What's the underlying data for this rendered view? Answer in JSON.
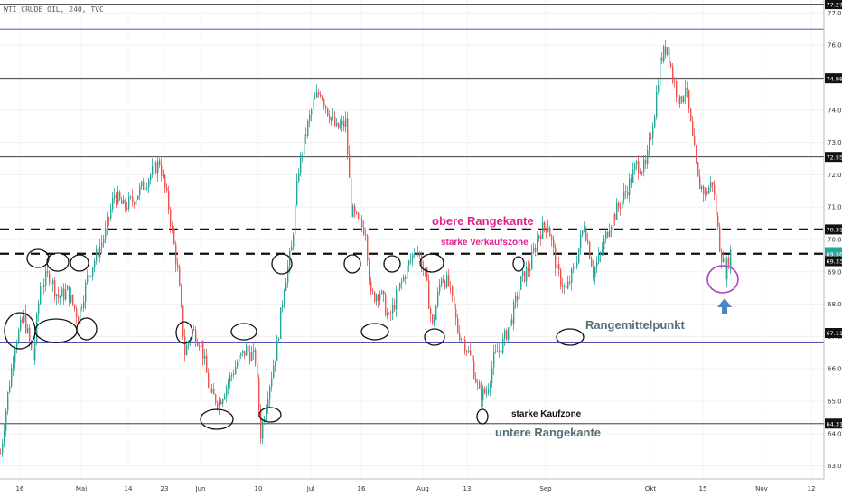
{
  "header": {
    "symbol_line": "WTI CRUDE OIL, 240, TVC"
  },
  "chart_data": {
    "type": "candlestick",
    "title": "WTI CRUDE OIL, 240, TVC",
    "ylim": [
      62.6,
      77.4
    ],
    "y_ticks": [
      63.0,
      64.0,
      65.0,
      66.0,
      67.0,
      68.0,
      69.0,
      70.0,
      71.0,
      72.0,
      73.0,
      74.0,
      75.0,
      76.0,
      77.0
    ],
    "x_ticks": [
      "16",
      "Mai",
      "14",
      "23",
      "Jun",
      "10",
      "Jul",
      "16",
      "Aug",
      "13",
      "Sep",
      "Okt",
      "15",
      "Nov",
      "12"
    ],
    "horizontal_levels": [
      {
        "value": 77.27,
        "label": "77.27",
        "color": "#222222",
        "style": "solid",
        "label_bg": "#111111"
      },
      {
        "value": 76.5,
        "label": "",
        "color": "#3a3aa8",
        "style": "solid"
      },
      {
        "value": 74.98,
        "label": "74.98",
        "color": "#222222",
        "style": "solid",
        "label_bg": "#111111"
      },
      {
        "value": 72.55,
        "label": "72.55",
        "color": "#222222",
        "style": "solid",
        "label_bg": "#111111"
      },
      {
        "value": 70.31,
        "label": "70.31",
        "color": "#111111",
        "style": "dashed",
        "label_bg": "#111111"
      },
      {
        "value": 69.61,
        "label": "69.61",
        "color": "#26a69a",
        "style": "none",
        "label_bg": "#26a69a"
      },
      {
        "value": 69.56,
        "label": "69.56",
        "color": "#111111",
        "style": "dashed",
        "label_bg": "#26a69a"
      },
      {
        "value": 69.33,
        "label": "69.33",
        "color": "#111111",
        "style": "none",
        "label_bg": "#111111"
      },
      {
        "value": 67.11,
        "label": "67.11",
        "color": "#222222",
        "style": "solid",
        "label_bg": "#111111"
      },
      {
        "value": 66.8,
        "label": "",
        "color": "#3a3aa8",
        "style": "solid"
      },
      {
        "value": 64.31,
        "label": "64.31",
        "color": "#222222",
        "style": "solid",
        "label_bg": "#111111"
      }
    ],
    "close_path": [
      [
        0,
        63.4
      ],
      [
        8,
        65.2
      ],
      [
        16,
        66.8
      ],
      [
        26,
        67.6
      ],
      [
        36,
        66.3
      ],
      [
        44,
        68.6
      ],
      [
        54,
        68.9
      ],
      [
        64,
        68.2
      ],
      [
        74,
        68.4
      ],
      [
        86,
        67.6
      ],
      [
        96,
        68.8
      ],
      [
        106,
        69.5
      ],
      [
        116,
        70.2
      ],
      [
        126,
        71.4
      ],
      [
        136,
        71.0
      ],
      [
        146,
        71.2
      ],
      [
        156,
        71.6
      ],
      [
        166,
        72.0
      ],
      [
        176,
        72.4
      ],
      [
        186,
        71.0
      ],
      [
        196,
        69.0
      ],
      [
        204,
        66.5
      ],
      [
        212,
        67.2
      ],
      [
        222,
        66.8
      ],
      [
        232,
        65.2
      ],
      [
        242,
        65.0
      ],
      [
        252,
        65.6
      ],
      [
        262,
        66.2
      ],
      [
        272,
        66.6
      ],
      [
        282,
        66.3
      ],
      [
        288,
        64.0
      ],
      [
        296,
        65.3
      ],
      [
        306,
        66.7
      ],
      [
        314,
        68.6
      ],
      [
        322,
        69.7
      ],
      [
        330,
        72.2
      ],
      [
        338,
        73.3
      ],
      [
        346,
        74.2
      ],
      [
        354,
        74.6
      ],
      [
        362,
        74.0
      ],
      [
        372,
        73.4
      ],
      [
        382,
        73.6
      ],
      [
        388,
        70.9
      ],
      [
        396,
        70.5
      ],
      [
        404,
        70.3
      ],
      [
        410,
        68.2
      ],
      [
        420,
        68.4
      ],
      [
        430,
        67.5
      ],
      [
        440,
        68.4
      ],
      [
        450,
        69.1
      ],
      [
        460,
        69.8
      ],
      [
        470,
        68.9
      ],
      [
        478,
        67.3
      ],
      [
        488,
        68.9
      ],
      [
        496,
        68.6
      ],
      [
        506,
        67.2
      ],
      [
        514,
        66.8
      ],
      [
        522,
        66.2
      ],
      [
        530,
        65.2
      ],
      [
        538,
        65.3
      ],
      [
        546,
        66.3
      ],
      [
        556,
        66.8
      ],
      [
        566,
        67.6
      ],
      [
        576,
        68.7
      ],
      [
        586,
        69.2
      ],
      [
        596,
        70.2
      ],
      [
        606,
        70.5
      ],
      [
        616,
        69.0
      ],
      [
        626,
        68.4
      ],
      [
        636,
        69.2
      ],
      [
        646,
        70.5
      ],
      [
        656,
        69.0
      ],
      [
        664,
        69.5
      ],
      [
        674,
        70.5
      ],
      [
        684,
        71.0
      ],
      [
        694,
        71.6
      ],
      [
        704,
        72.3
      ],
      [
        714,
        72.2
      ],
      [
        724,
        74.0
      ],
      [
        730,
        75.5
      ],
      [
        738,
        76.0
      ],
      [
        744,
        75.0
      ],
      [
        752,
        74.2
      ],
      [
        758,
        74.8
      ],
      [
        764,
        73.5
      ],
      [
        772,
        71.8
      ],
      [
        780,
        71.4
      ],
      [
        788,
        71.8
      ],
      [
        796,
        69.8
      ],
      [
        802,
        69.0
      ],
      [
        808,
        69.61
      ]
    ]
  },
  "annotations": {
    "upper_range": "obere Rangekante",
    "sell_zone": "starke Verkaufszone",
    "midpoint": "Rangemittelpunkt",
    "buy_zone": "starke Kaufzone",
    "lower_range": "untere Rangekante"
  }
}
